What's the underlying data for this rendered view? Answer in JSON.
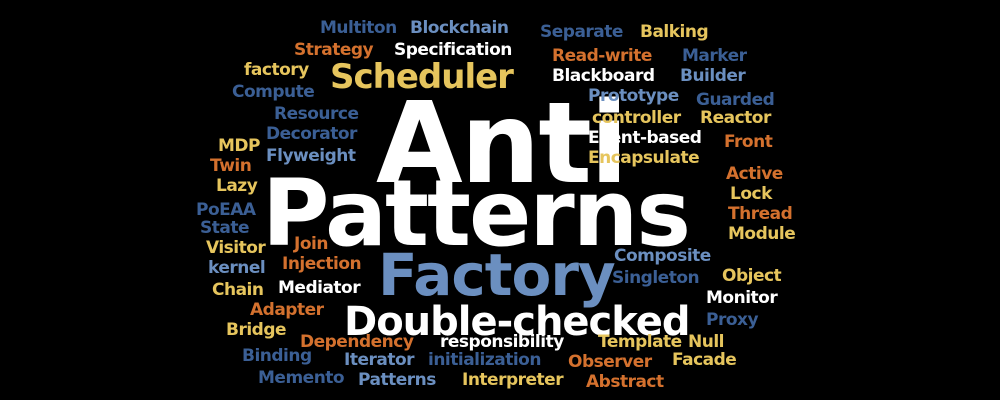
{
  "words": [
    {
      "text": "Anti",
      "color": "#ffffff"
    },
    {
      "text": "Patterns",
      "color": "#ffffff"
    },
    {
      "text": "Factory",
      "color": "#6b8fc0"
    },
    {
      "text": "Double-checked",
      "color": "#ffffff"
    },
    {
      "text": "Scheduler",
      "color": "#e6c55d"
    },
    {
      "text": "Multiton",
      "color": "#3b5f95"
    },
    {
      "text": "Blockchain",
      "color": "#6b8fc0"
    },
    {
      "text": "Separate",
      "color": "#3b5f95"
    },
    {
      "text": "Balking",
      "color": "#e6c55d"
    },
    {
      "text": "Strategy",
      "color": "#d4712e"
    },
    {
      "text": "Specification",
      "color": "#ffffff"
    },
    {
      "text": "Read-write",
      "color": "#d4712e"
    },
    {
      "text": "Marker",
      "color": "#3b5f95"
    },
    {
      "text": "factory",
      "color": "#e6c55d"
    },
    {
      "text": "Blackboard",
      "color": "#ffffff"
    },
    {
      "text": "Builder",
      "color": "#6b8fc0"
    },
    {
      "text": "Compute",
      "color": "#3b5f95"
    },
    {
      "text": "Prototype",
      "color": "#6b8fc0"
    },
    {
      "text": "Guarded",
      "color": "#3b5f95"
    },
    {
      "text": "Resource",
      "color": "#3b5f95"
    },
    {
      "text": "controller",
      "color": "#e6c55d"
    },
    {
      "text": "Reactor",
      "color": "#e6c55d"
    },
    {
      "text": "Decorator",
      "color": "#3b5f95"
    },
    {
      "text": "MDP",
      "color": "#e6c55d"
    },
    {
      "text": "Event-based",
      "color": "#ffffff"
    },
    {
      "text": "Front",
      "color": "#d4712e"
    },
    {
      "text": "Twin",
      "color": "#d4712e"
    },
    {
      "text": "Flyweight",
      "color": "#6b8fc0"
    },
    {
      "text": "Encapsulate",
      "color": "#e6c55d"
    },
    {
      "text": "Lazy",
      "color": "#e6c55d"
    },
    {
      "text": "Active",
      "color": "#d4712e"
    },
    {
      "text": "Lock",
      "color": "#e6c55d"
    },
    {
      "text": "PoEAA",
      "color": "#3b5f95"
    },
    {
      "text": "Thread",
      "color": "#d4712e"
    },
    {
      "text": "State",
      "color": "#3b5f95"
    },
    {
      "text": "Module",
      "color": "#e6c55d"
    },
    {
      "text": "Visitor",
      "color": "#e6c55d"
    },
    {
      "text": "Join",
      "color": "#d4712e"
    },
    {
      "text": "kernel",
      "color": "#6b8fc0"
    },
    {
      "text": "Injection",
      "color": "#d4712e"
    },
    {
      "text": "Composite",
      "color": "#6b8fc0"
    },
    {
      "text": "Object",
      "color": "#e6c55d"
    },
    {
      "text": "Singleton",
      "color": "#3b5f95"
    },
    {
      "text": "Chain",
      "color": "#e6c55d"
    },
    {
      "text": "Mediator",
      "color": "#ffffff"
    },
    {
      "text": "Monitor",
      "color": "#ffffff"
    },
    {
      "text": "Adapter",
      "color": "#d4712e"
    },
    {
      "text": "Proxy",
      "color": "#3b5f95"
    },
    {
      "text": "Bridge",
      "color": "#e6c55d"
    },
    {
      "text": "Dependency",
      "color": "#d4712e"
    },
    {
      "text": "responsibility",
      "color": "#ffffff"
    },
    {
      "text": "Template",
      "color": "#e6c55d"
    },
    {
      "text": "Null",
      "color": "#e6c55d"
    },
    {
      "text": "Binding",
      "color": "#3b5f95"
    },
    {
      "text": "Iterator",
      "color": "#6b8fc0"
    },
    {
      "text": "initialization",
      "color": "#3b5f95"
    },
    {
      "text": "Observer",
      "color": "#d4712e"
    },
    {
      "text": "Facade",
      "color": "#e6c55d"
    },
    {
      "text": "Memento",
      "color": "#3b5f95"
    },
    {
      "text": "Patterns",
      "color": "#6b8fc0"
    },
    {
      "text": "Interpreter",
      "color": "#e6c55d"
    },
    {
      "text": "Abstract",
      "color": "#d4712e"
    }
  ]
}
